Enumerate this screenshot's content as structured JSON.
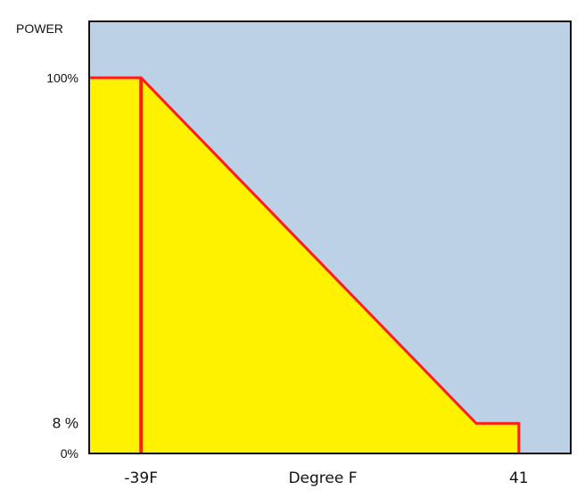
{
  "chart_data": {
    "type": "area",
    "ylabel": "POWER",
    "xlabel": "Degree F",
    "y_ticks": [
      {
        "value": 100,
        "label": "100%"
      },
      {
        "value": 8,
        "label": "8 %"
      },
      {
        "value": 0,
        "label": "0%"
      }
    ],
    "x_ticks": [
      {
        "value": -39,
        "label": "-39F"
      },
      {
        "value": 41,
        "label": "41"
      }
    ],
    "xlim": [
      -50,
      52
    ],
    "ylim": [
      0,
      115
    ],
    "series": [
      {
        "points": [
          {
            "x": -50,
            "y": 0
          },
          {
            "x": -50,
            "y": 100
          },
          {
            "x": -39,
            "y": 100
          },
          {
            "x": 32,
            "y": 8
          },
          {
            "x": 41,
            "y": 8
          },
          {
            "x": 41,
            "y": 0
          }
        ]
      }
    ],
    "marker_line_x": -39,
    "grid": false,
    "colors": {
      "plot_background": "#bcd1e6",
      "area_fill": "#fff200",
      "curve": "#ff1c1c",
      "frame": "#111111"
    }
  }
}
